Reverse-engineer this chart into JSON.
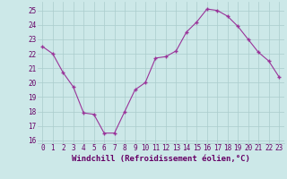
{
  "x": [
    0,
    1,
    2,
    3,
    4,
    5,
    6,
    7,
    8,
    9,
    10,
    11,
    12,
    13,
    14,
    15,
    16,
    17,
    18,
    19,
    20,
    21,
    22,
    23
  ],
  "y": [
    22.5,
    22.0,
    20.7,
    19.7,
    17.9,
    17.8,
    16.5,
    16.5,
    18.0,
    19.5,
    20.0,
    21.7,
    21.8,
    22.2,
    23.5,
    24.2,
    25.1,
    25.0,
    24.6,
    23.9,
    23.0,
    22.1,
    21.5,
    20.4
  ],
  "line_color": "#993399",
  "marker": "+",
  "bg_color": "#cce8e8",
  "grid_color": "#aacccc",
  "xlabel": "Windchill (Refroidissement éolien,°C)",
  "label_color": "#660066",
  "tick_color": "#660066",
  "ylim": [
    15.8,
    25.6
  ],
  "yticks": [
    16,
    17,
    18,
    19,
    20,
    21,
    22,
    23,
    24,
    25
  ],
  "xticks": [
    0,
    1,
    2,
    3,
    4,
    5,
    6,
    7,
    8,
    9,
    10,
    11,
    12,
    13,
    14,
    15,
    16,
    17,
    18,
    19,
    20,
    21,
    22,
    23
  ],
  "tick_fontsize": 5.5,
  "label_fontsize": 6.5
}
